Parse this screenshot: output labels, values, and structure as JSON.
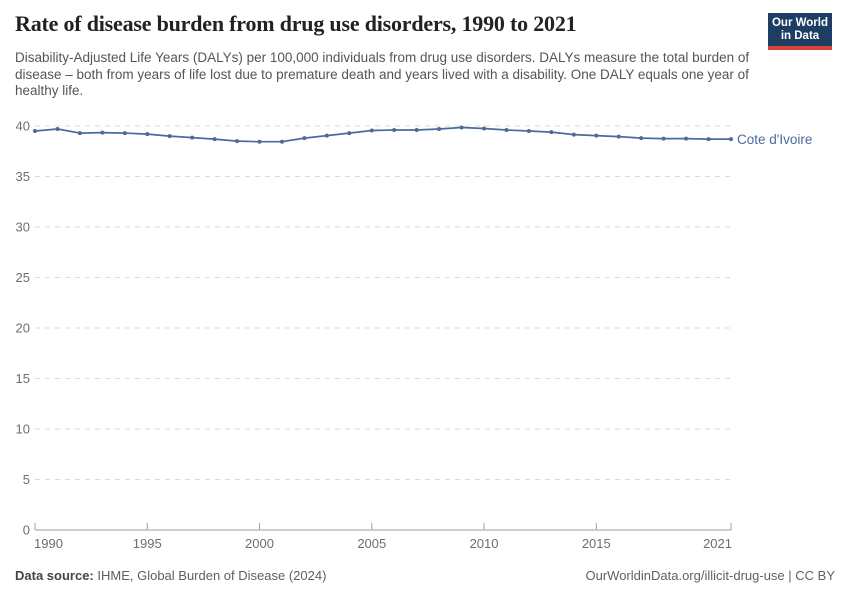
{
  "header": {
    "title": "Rate of disease burden from drug use disorders, 1990 to 2021",
    "subtitle": "Disability-Adjusted Life Years (DALYs) per 100,000 individuals from drug use disorders. DALYs measure the total burden of disease – both from years of life lost due to premature death and years lived with a disability. One DALY equals one year of healthy life.",
    "logo": {
      "line1": "Our World",
      "line2": "in Data"
    }
  },
  "chart_data": {
    "type": "line",
    "title": "Rate of disease burden from drug use disorders, 1990 to 2021",
    "x": [
      1990,
      1991,
      1992,
      1993,
      1994,
      1995,
      1996,
      1997,
      1998,
      1999,
      2000,
      2001,
      2002,
      2003,
      2004,
      2005,
      2006,
      2007,
      2008,
      2009,
      2010,
      2011,
      2012,
      2013,
      2014,
      2015,
      2016,
      2017,
      2018,
      2019,
      2020,
      2021
    ],
    "series": [
      {
        "name": "Cote d'Ivoire",
        "color": "#4c6a9c",
        "values": [
          39.5,
          39.7,
          39.3,
          39.35,
          39.3,
          39.2,
          39.0,
          38.85,
          38.7,
          38.5,
          38.45,
          38.45,
          38.8,
          39.05,
          39.3,
          39.55,
          39.6,
          39.6,
          39.7,
          39.85,
          39.75,
          39.6,
          39.5,
          39.4,
          39.15,
          39.05,
          38.95,
          38.8,
          38.75,
          38.75,
          38.7,
          38.7
        ]
      }
    ],
    "xlabel": "",
    "ylabel": "",
    "ylim": [
      0,
      40
    ],
    "yticks": [
      0,
      5,
      10,
      15,
      20,
      25,
      30,
      35,
      40
    ],
    "xticks": [
      1990,
      1995,
      2000,
      2005,
      2010,
      2015,
      2021
    ],
    "grid": true,
    "legend_position": "label-at-line-end"
  },
  "footer": {
    "datasource_label": "Data source:",
    "datasource_value": " IHME, Global Burden of Disease (2024)",
    "credit": "OurWorldinData.org/illicit-drug-use | CC BY"
  },
  "colors": {
    "line": "#4c6a9c",
    "logo_bg": "#1d3d63",
    "logo_accent": "#d8413c",
    "gridline": "#dadada",
    "axis": "#9e9e9e",
    "tick_label": "#6e6e6e"
  }
}
